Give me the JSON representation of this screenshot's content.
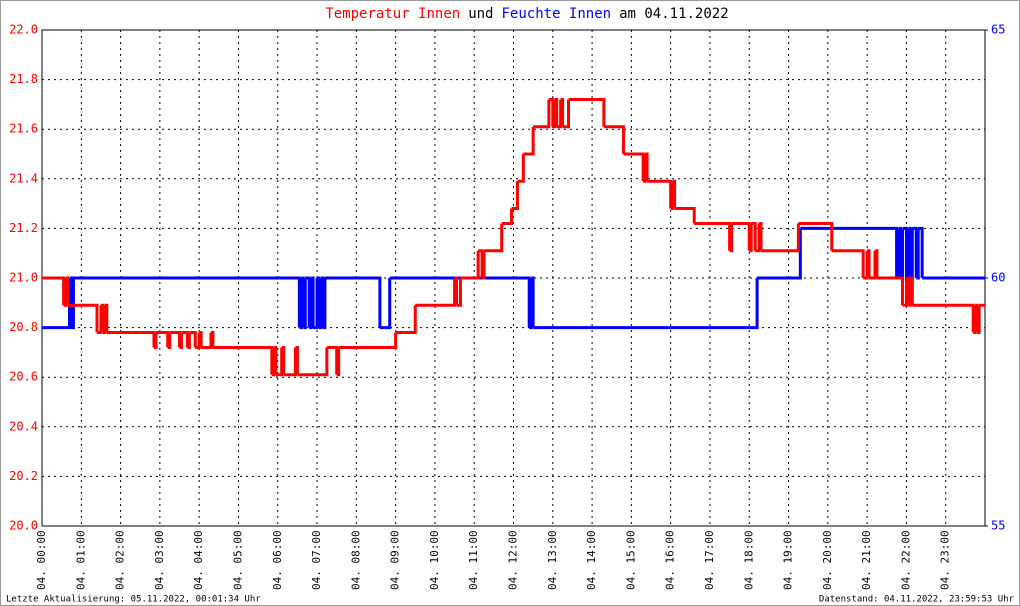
{
  "chart_data": {
    "type": "line",
    "step": "post",
    "title_parts": [
      {
        "text": "Temperatur Innen",
        "color": "#ff0000"
      },
      {
        "text": "und",
        "color": "#000000"
      },
      {
        "text": "Feuchte Innen",
        "color": "#0000ff"
      },
      {
        "text": "am 04.11.2022",
        "color": "#000000"
      }
    ],
    "footer_left": "Letzte Aktualisierung: 05.11.2022, 00:01:34 Uhr",
    "footer_right": "Datenstand: 04.11.2022, 23:59:53 Uhr",
    "grid": true,
    "xlim": [
      0,
      24
    ],
    "xticks": [
      {
        "value": 0,
        "label": "04. 00:00"
      },
      {
        "value": 1,
        "label": "04. 01:00"
      },
      {
        "value": 2,
        "label": "04. 02:00"
      },
      {
        "value": 3,
        "label": "04. 03:00"
      },
      {
        "value": 4,
        "label": "04. 04:00"
      },
      {
        "value": 5,
        "label": "04. 05:00"
      },
      {
        "value": 6,
        "label": "04. 06:00"
      },
      {
        "value": 7,
        "label": "04. 07:00"
      },
      {
        "value": 8,
        "label": "04. 08:00"
      },
      {
        "value": 9,
        "label": "04. 09:00"
      },
      {
        "value": 10,
        "label": "04. 10:00"
      },
      {
        "value": 11,
        "label": "04. 11:00"
      },
      {
        "value": 12,
        "label": "04. 12:00"
      },
      {
        "value": 13,
        "label": "04. 13:00"
      },
      {
        "value": 14,
        "label": "04. 14:00"
      },
      {
        "value": 15,
        "label": "04. 15:00"
      },
      {
        "value": 16,
        "label": "04. 16:00"
      },
      {
        "value": 17,
        "label": "04. 17:00"
      },
      {
        "value": 18,
        "label": "04. 18:00"
      },
      {
        "value": 19,
        "label": "04. 19:00"
      },
      {
        "value": 20,
        "label": "04. 20:00"
      },
      {
        "value": 21,
        "label": "04. 21:00"
      },
      {
        "value": 22,
        "label": "04. 22:00"
      },
      {
        "value": 23,
        "label": "04. 23:00"
      }
    ],
    "ylim": [
      20,
      22
    ],
    "yticks": [
      {
        "value": 20,
        "label": "20.0"
      },
      {
        "value": 20.2,
        "label": "20.2"
      },
      {
        "value": 20.4,
        "label": "20.4"
      },
      {
        "value": 20.6,
        "label": "20.6"
      },
      {
        "value": 20.8,
        "label": "20.8"
      },
      {
        "value": 21,
        "label": "21.0"
      },
      {
        "value": 21.2,
        "label": "21.2"
      },
      {
        "value": 21.4,
        "label": "21.4"
      },
      {
        "value": 21.6,
        "label": "21.6"
      },
      {
        "value": 21.8,
        "label": "21.8"
      },
      {
        "value": 22,
        "label": "22.0"
      }
    ],
    "y_color": "#ff0000",
    "y2lim": [
      55,
      65
    ],
    "y2ticks": [
      55,
      60,
      65
    ],
    "y2_color": "#0000ff",
    "series": [
      {
        "name": "Temperatur Innen",
        "color": "#ff0000",
        "axis": "y",
        "x": [
          0,
          0.55,
          0.6,
          0.65,
          1.4,
          1.5,
          1.55,
          1.6,
          1.65,
          2.85,
          2.9,
          3.2,
          3.25,
          3.5,
          3.55,
          3.7,
          3.75,
          3.9,
          4.0,
          4.05,
          4.3,
          4.35,
          5.85,
          5.9,
          5.95,
          6.1,
          6.15,
          6.45,
          6.5,
          7.25,
          7.5,
          7.55,
          9.0,
          9.5,
          10.5,
          10.55,
          10.65,
          11.1,
          11.2,
          11.25,
          11.7,
          11.95,
          12.1,
          12.25,
          12.5,
          12.9,
          13.0,
          13.05,
          13.1,
          13.2,
          13.25,
          13.4,
          14.3,
          14.8,
          15.3,
          15.35,
          15.4,
          16.0,
          16.05,
          16.1,
          16.6,
          17.5,
          17.55,
          18.0,
          18.05,
          18.15,
          18.25,
          18.3,
          19.25,
          20.1,
          20.9,
          21.0,
          21.05,
          21.2,
          21.25,
          21.9,
          22.0,
          22.05,
          22.1,
          22.15,
          23.7,
          23.75,
          23.8,
          23.85
        ],
        "values": [
          21.0,
          20.89,
          21.0,
          20.89,
          20.78,
          20.89,
          20.78,
          20.89,
          20.78,
          20.72,
          20.78,
          20.72,
          20.78,
          20.72,
          20.78,
          20.72,
          20.78,
          20.72,
          20.78,
          20.72,
          20.78,
          20.72,
          20.61,
          20.72,
          20.61,
          20.72,
          20.61,
          20.72,
          20.61,
          20.72,
          20.61,
          20.72,
          20.78,
          20.89,
          21.0,
          20.89,
          21.0,
          21.11,
          21.0,
          21.11,
          21.22,
          21.28,
          21.39,
          21.5,
          21.61,
          21.72,
          21.61,
          21.72,
          21.61,
          21.72,
          21.61,
          21.72,
          21.61,
          21.5,
          21.39,
          21.5,
          21.39,
          21.28,
          21.39,
          21.28,
          21.22,
          21.11,
          21.22,
          21.11,
          21.22,
          21.11,
          21.22,
          21.11,
          21.22,
          21.11,
          21.0,
          21.11,
          21.0,
          21.11,
          21.0,
          20.89,
          21.0,
          20.89,
          21.0,
          20.89,
          20.78,
          20.89,
          20.78,
          20.89
        ]
      },
      {
        "name": "Feuchte Innen",
        "color": "#0000ff",
        "axis": "y2",
        "x": [
          0,
          0.7,
          0.72,
          0.75,
          0.78,
          0.8,
          6.55,
          6.6,
          6.65,
          6.7,
          6.8,
          6.85,
          6.9,
          7.0,
          7.05,
          7.1,
          7.15,
          7.2,
          8.6,
          8.85,
          12.4,
          12.45,
          12.5,
          18.2,
          19.3,
          21.75,
          21.8,
          21.85,
          21.9,
          22.0,
          22.05,
          22.1,
          22.15,
          22.25,
          22.3,
          22.4
        ],
        "values": [
          59,
          60,
          59,
          60,
          59,
          60,
          59,
          60,
          59,
          60,
          59,
          60,
          59,
          60,
          59,
          60,
          59,
          60,
          59,
          60,
          59,
          60,
          59,
          60,
          61,
          60,
          61,
          60,
          61,
          60,
          61,
          60,
          61,
          60,
          61,
          60
        ]
      }
    ]
  }
}
